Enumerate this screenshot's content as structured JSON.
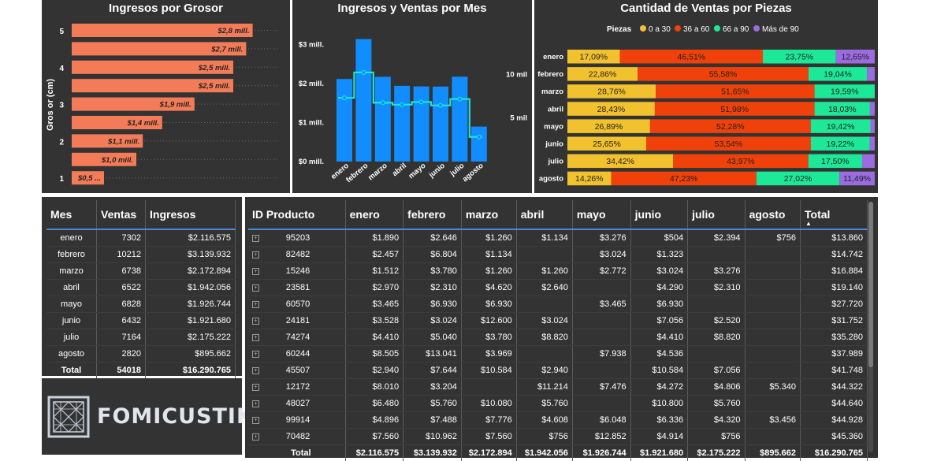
{
  "charts": {
    "grosor": {
      "title": "Ingresos por Grosor",
      "ylabel": "Gros or (cm)",
      "yticks": [
        "5",
        "4",
        "3",
        "2",
        "1"
      ],
      "values": [
        2.8,
        2.7,
        2.5,
        2.5,
        1.9,
        1.4,
        1.1,
        1.0,
        0.5
      ],
      "labels": [
        "$2,8 mill.",
        "$2,7 mill.",
        "$2,5 mill.",
        "$2,5 mill.",
        "$1,9 mill.",
        "$1,4 mill.",
        "$1,1 mill.",
        "$1,0 mill.",
        "$0,5 ..."
      ],
      "color": "#f47b58"
    },
    "mes": {
      "title": "Ingresos y Ventas por Mes",
      "months": [
        "enero",
        "febrero",
        "marzo",
        "abril",
        "mayo",
        "junio",
        "julio",
        "agosto"
      ],
      "ingresos": [
        2.116575,
        3.139932,
        2.172894,
        1.942056,
        1.926744,
        1.92168,
        2.175222,
        0.895662
      ],
      "ventas": [
        7302,
        10212,
        6738,
        6522,
        6828,
        6432,
        7164,
        2820
      ],
      "left_ticks": [
        "$0 mill.",
        "$1 mill.",
        "$2 mill.",
        "$3 mill."
      ],
      "right_ticks": [
        "5 mil",
        "10 mil"
      ],
      "bar_color": "#118dff",
      "line_color": "#1ce8d2"
    },
    "piezas": {
      "title": "Cantidad de Ventas por Piezas",
      "legend_title": "Piezas",
      "legend": [
        "0 a 30",
        "36 a 60",
        "66 a 90",
        "Más de 90"
      ],
      "colors": [
        "#f2c12e",
        "#ef4109",
        "#1ce898",
        "#9b6be0"
      ],
      "months": [
        "enero",
        "febrero",
        "marzo",
        "abril",
        "mayo",
        "junio",
        "julio",
        "agosto"
      ],
      "values": [
        [
          17.09,
          46.51,
          23.75,
          12.65
        ],
        [
          22.86,
          55.58,
          19.04,
          2.52
        ],
        [
          28.76,
          51.65,
          19.59,
          0
        ],
        [
          28.43,
          51.98,
          18.03,
          1.56
        ],
        [
          26.89,
          52.28,
          19.42,
          1.41
        ],
        [
          25.65,
          53.54,
          19.22,
          1.59
        ],
        [
          34.42,
          43.97,
          17.5,
          4.11
        ],
        [
          14.26,
          47.23,
          27.02,
          11.49
        ]
      ],
      "labels": [
        [
          "17,09%",
          "46,51%",
          "23,75%",
          "12,65%"
        ],
        [
          "22,86%",
          "55,58%",
          "19,04%",
          ""
        ],
        [
          "28,76%",
          "51,65%",
          "19,59%",
          ""
        ],
        [
          "28,43%",
          "51,98%",
          "18,03%",
          ""
        ],
        [
          "26,89%",
          "52,28%",
          "19,42%",
          ""
        ],
        [
          "25,65%",
          "53,54%",
          "19,22%",
          ""
        ],
        [
          "34,42%",
          "43,97%",
          "17,50%",
          ""
        ],
        [
          "14,26%",
          "47,23%",
          "27,02%",
          "11,49%"
        ]
      ]
    }
  },
  "chart_data": [
    {
      "type": "bar",
      "title": "Ingresos por Grosor",
      "ylabel": "Gros or (cm)",
      "categories": [
        "5",
        "",
        "4",
        "",
        "3",
        "",
        "2",
        "",
        "1"
      ],
      "values": [
        2.8,
        2.7,
        2.5,
        2.5,
        1.9,
        1.4,
        1.1,
        1.0,
        0.5
      ]
    },
    {
      "type": "bar",
      "title": "Ingresos y Ventas por Mes",
      "categories": [
        "enero",
        "febrero",
        "marzo",
        "abril",
        "mayo",
        "junio",
        "julio",
        "agosto"
      ],
      "series": [
        {
          "values": [
            2116575,
            3139932,
            2172894,
            1942056,
            1926744,
            1921680,
            2175222,
            895662
          ]
        },
        {
          "values": [
            7302,
            10212,
            6738,
            6522,
            6828,
            6432,
            7164,
            2820
          ]
        }
      ],
      "ylim": [
        0,
        3000000
      ]
    },
    {
      "type": "bar",
      "title": "Cantidad de Ventas por Piezas",
      "categories": [
        "enero",
        "febrero",
        "marzo",
        "abril",
        "mayo",
        "junio",
        "julio",
        "agosto"
      ],
      "series": [
        {
          "name": "0 a 30",
          "values": [
            17.09,
            22.86,
            28.76,
            28.43,
            26.89,
            25.65,
            34.42,
            14.26
          ]
        },
        {
          "name": "36 a 60",
          "values": [
            46.51,
            55.58,
            51.65,
            51.98,
            52.28,
            53.54,
            43.97,
            47.23
          ]
        },
        {
          "name": "66 a 90",
          "values": [
            23.75,
            19.04,
            19.59,
            18.03,
            19.42,
            19.22,
            17.5,
            27.02
          ]
        },
        {
          "name": "Más de 90",
          "values": [
            12.65,
            2.52,
            0,
            1.56,
            1.41,
            1.59,
            4.11,
            11.49
          ]
        }
      ]
    }
  ],
  "mes_table": {
    "headers": [
      "Mes",
      "Ventas",
      "Ingresos"
    ],
    "rows": [
      [
        "enero",
        "7302",
        "$2.116.575"
      ],
      [
        "febrero",
        "10212",
        "$3.139.932"
      ],
      [
        "marzo",
        "6738",
        "$2.172.894"
      ],
      [
        "abril",
        "6522",
        "$1.942.056"
      ],
      [
        "mayo",
        "6828",
        "$1.926.744"
      ],
      [
        "junio",
        "6432",
        "$1.921.680"
      ],
      [
        "julio",
        "7164",
        "$2.175.222"
      ],
      [
        "agosto",
        "2820",
        "$895.662"
      ]
    ],
    "total": [
      "Total",
      "54018",
      "$16.290.765"
    ]
  },
  "product_table": {
    "headers": [
      "ID Producto",
      "enero",
      "febrero",
      "marzo",
      "abril",
      "mayo",
      "junio",
      "julio",
      "agosto",
      "Total"
    ],
    "rows": [
      [
        "95203",
        "$1.890",
        "$2.646",
        "$1.260",
        "$1.134",
        "$3.276",
        "$504",
        "$2.394",
        "$756",
        "$13.860"
      ],
      [
        "82482",
        "$2.457",
        "$6.804",
        "$1.134",
        "",
        "$3.024",
        "$1.323",
        "",
        "",
        "$14.742"
      ],
      [
        "15246",
        "$1.512",
        "$3.780",
        "$1.260",
        "$1.260",
        "$2.772",
        "$3.024",
        "$3.276",
        "",
        "$16.884"
      ],
      [
        "23581",
        "$2.970",
        "$2.310",
        "$4.620",
        "$2.640",
        "",
        "$4.290",
        "$2.310",
        "",
        "$19.140"
      ],
      [
        "60570",
        "$3.465",
        "$6.930",
        "$6.930",
        "",
        "$3.465",
        "$6.930",
        "",
        "",
        "$27.720"
      ],
      [
        "24181",
        "$3.528",
        "$3.024",
        "$12.600",
        "$3.024",
        "",
        "$7.056",
        "$2.520",
        "",
        "$31.752"
      ],
      [
        "74274",
        "$4.410",
        "$5.040",
        "$3.780",
        "$8.820",
        "",
        "$4.410",
        "$8.820",
        "",
        "$35.280"
      ],
      [
        "60244",
        "$8.505",
        "$13.041",
        "$3.969",
        "",
        "$7.938",
        "$4.536",
        "",
        "",
        "$37.989"
      ],
      [
        "45507",
        "$2.940",
        "$7.644",
        "$10.584",
        "$2.940",
        "",
        "$10.584",
        "$7.056",
        "",
        "$41.748"
      ],
      [
        "12172",
        "$8.010",
        "$3.204",
        "",
        "$11.214",
        "$7.476",
        "$4.272",
        "$4.806",
        "$5.340",
        "$44.322"
      ],
      [
        "48027",
        "$6.480",
        "$5.760",
        "$10.080",
        "$5.760",
        "",
        "$10.800",
        "$5.760",
        "",
        "$44.640"
      ],
      [
        "99914",
        "$4.896",
        "$7.488",
        "$7.776",
        "$4.608",
        "$6.048",
        "$6.336",
        "$4.320",
        "$3.456",
        "$44.928"
      ],
      [
        "70482",
        "$7.560",
        "$10.962",
        "$7.560",
        "$756",
        "$12.852",
        "$4.914",
        "$756",
        "",
        "$45.360"
      ]
    ],
    "total": [
      "Total",
      "$2.116.575",
      "$3.139.932",
      "$2.172.894",
      "$1.942.056",
      "$1.926.744",
      "$1.921.680",
      "$2.175.222",
      "$895.662",
      "$16.290.765"
    ]
  },
  "logo": {
    "text": "FOMICUSTIKS"
  }
}
